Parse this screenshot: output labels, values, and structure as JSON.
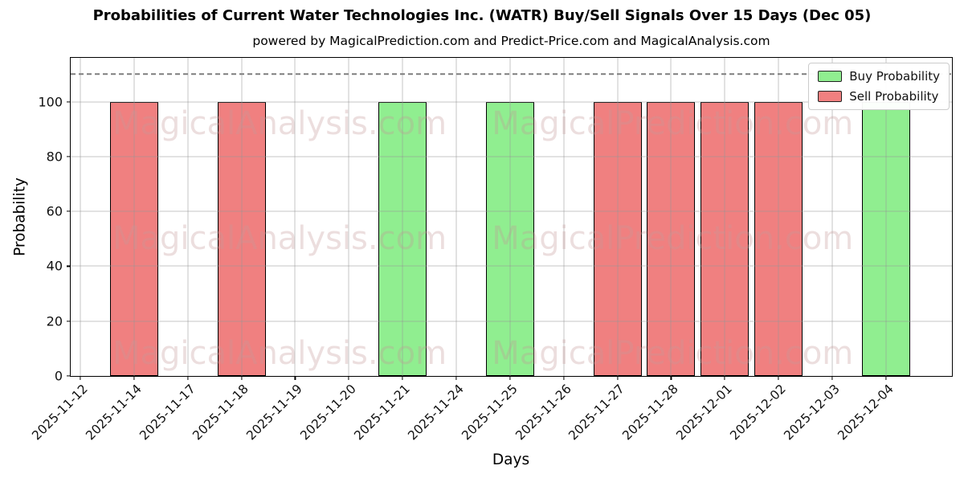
{
  "chart_data": {
    "type": "bar",
    "title": "Probabilities of Current Water Technologies Inc. (WATR) Buy/Sell Signals Over 15 Days (Dec 05)",
    "subtitle": "powered by MagicalPrediction.com and Predict-Price.com and MagicalAnalysis.com",
    "xlabel": "Days",
    "ylabel": "Probability",
    "categories": [
      "2025-11-12",
      "2025-11-14",
      "2025-11-17",
      "2025-11-18",
      "2025-11-19",
      "2025-11-20",
      "2025-11-21",
      "2025-11-24",
      "2025-11-25",
      "2025-11-26",
      "2025-11-27",
      "2025-11-28",
      "2025-12-01",
      "2025-12-02",
      "2025-12-03",
      "2025-12-04"
    ],
    "series": [
      {
        "name": "Buy Probability",
        "color": "#90ee90",
        "values": [
          0,
          0,
          0,
          0,
          0,
          0,
          100,
          0,
          100,
          0,
          0,
          0,
          0,
          0,
          0,
          100
        ]
      },
      {
        "name": "Sell Probability",
        "color": "#f08080",
        "values": [
          0,
          100,
          0,
          100,
          0,
          0,
          0,
          0,
          0,
          0,
          100,
          100,
          100,
          100,
          0,
          0
        ]
      }
    ],
    "yticks": [
      0,
      20,
      40,
      60,
      80,
      100
    ],
    "ylim": [
      0,
      116
    ],
    "threshold_line": {
      "y": 110,
      "style": "dashed",
      "color": "#7f7f7f"
    },
    "grid": true,
    "legend_position": "upper right",
    "bar_edge_color": "#000000",
    "watermarks": [
      "MagicalAnalysis.com",
      "MagicalPrediction.com"
    ]
  }
}
